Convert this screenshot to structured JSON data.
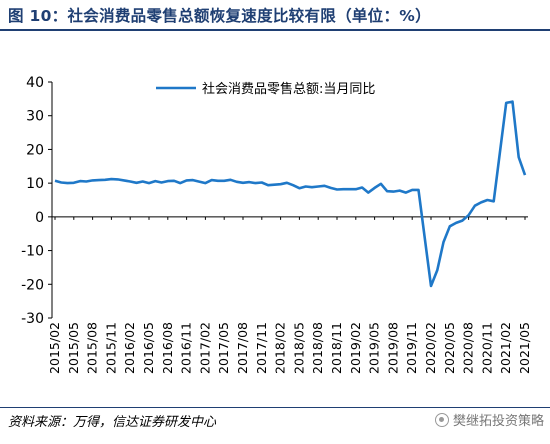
{
  "title": "图 10：社会消费品零售总额恢复速度比较有限（单位：%）",
  "source": "资料来源：万得，信达证券研发中心",
  "watermark": "樊继拓投资策略",
  "watermark_icon": "wechat-logo-icon",
  "colors": {
    "line": "#1f78c8",
    "title": "#1f3f73",
    "axis": "#000000"
  },
  "chart_data": {
    "type": "line",
    "ylim": [
      -30,
      40
    ],
    "yticks": [
      -30,
      -20,
      -10,
      0,
      10,
      20,
      30,
      40
    ],
    "xtick_labels": [
      "2015/02",
      "2015/05",
      "2015/08",
      "2015/11",
      "2016/02",
      "2016/05",
      "2016/08",
      "2016/11",
      "2017/02",
      "2017/05",
      "2017/08",
      "2017/11",
      "2018/02",
      "2018/05",
      "2018/08",
      "2018/11",
      "2019/02",
      "2019/05",
      "2019/08",
      "2019/11",
      "2020/02",
      "2020/05",
      "2020/08",
      "2020/11",
      "2021/02",
      "2021/05"
    ],
    "legend_position": "top-center",
    "series": [
      {
        "name": "社会消费品零售总额:当月同比",
        "x": [
          "2015/02",
          "2015/03",
          "2015/04",
          "2015/05",
          "2015/06",
          "2015/07",
          "2015/08",
          "2015/09",
          "2015/10",
          "2015/11",
          "2015/12",
          "2016/02",
          "2016/03",
          "2016/04",
          "2016/05",
          "2016/06",
          "2016/07",
          "2016/08",
          "2016/09",
          "2016/10",
          "2016/11",
          "2016/12",
          "2017/02",
          "2017/03",
          "2017/04",
          "2017/05",
          "2017/06",
          "2017/07",
          "2017/08",
          "2017/09",
          "2017/10",
          "2017/11",
          "2017/12",
          "2018/02",
          "2018/03",
          "2018/04",
          "2018/05",
          "2018/06",
          "2018/07",
          "2018/08",
          "2018/09",
          "2018/10",
          "2018/11",
          "2018/12",
          "2019/02",
          "2019/03",
          "2019/04",
          "2019/05",
          "2019/06",
          "2019/07",
          "2019/08",
          "2019/09",
          "2019/10",
          "2019/11",
          "2019/12",
          "2020/02",
          "2020/03",
          "2020/04",
          "2020/05",
          "2020/06",
          "2020/07",
          "2020/08",
          "2020/09",
          "2020/10",
          "2020/11",
          "2020/12",
          "2021/02",
          "2021/03",
          "2021/04",
          "2021/05"
        ],
        "values": [
          10.7,
          10.2,
          10.0,
          10.1,
          10.6,
          10.5,
          10.8,
          10.9,
          11.0,
          11.2,
          11.1,
          10.5,
          10.1,
          10.5,
          10.0,
          10.6,
          10.2,
          10.6,
          10.7,
          10.0,
          10.8,
          10.9,
          10.0,
          10.9,
          10.7,
          10.7,
          11.0,
          10.4,
          10.1,
          10.3,
          10.0,
          10.2,
          9.4,
          9.7,
          10.1,
          9.4,
          8.5,
          9.0,
          8.8,
          9.0,
          9.2,
          8.6,
          8.1,
          8.2,
          8.2,
          8.7,
          7.2,
          8.6,
          9.8,
          7.6,
          7.5,
          7.8,
          7.2,
          8.0,
          8.0,
          -20.5,
          -15.8,
          -7.5,
          -2.8,
          -1.8,
          -1.1,
          0.5,
          3.3,
          4.3,
          5.0,
          4.6,
          33.8,
          34.2,
          17.7,
          12.4
        ]
      }
    ]
  }
}
